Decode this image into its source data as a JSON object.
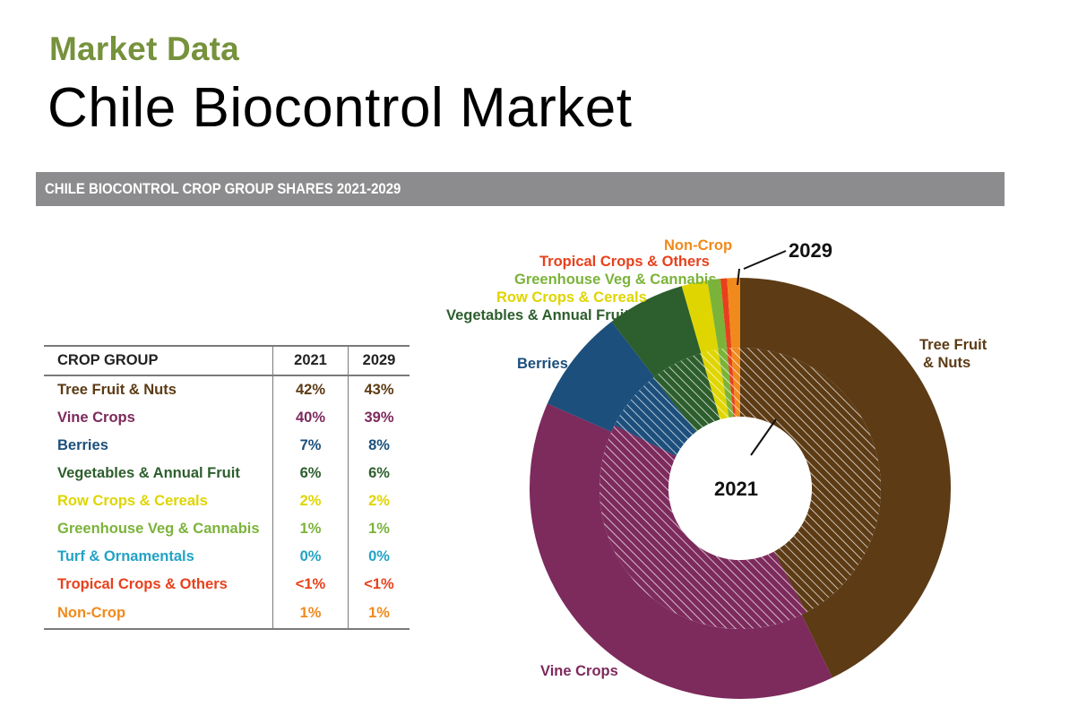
{
  "page": {
    "subtitle": "Market Data",
    "title": "Chile Biocontrol Market",
    "banner": "CHILE BIOCONTROL CROP GROUP SHARES 2021-2029"
  },
  "table": {
    "headers": [
      "CROP GROUP",
      "2021",
      "2029"
    ],
    "rows": [
      {
        "name": "Tree Fruit & Nuts",
        "y2021": "42%",
        "y2029": "43%",
        "color": "#5c3b15"
      },
      {
        "name": "Vine Crops",
        "y2021": "40%",
        "y2029": "39%",
        "color": "#7d2a5c"
      },
      {
        "name": "Berries",
        "y2021": "7%",
        "y2029": "8%",
        "color": "#1c4f7c"
      },
      {
        "name": "Vegetables & Annual Fruit",
        "y2021": "6%",
        "y2029": "6%",
        "color": "#2d5e2d"
      },
      {
        "name": "Row Crops & Cereals",
        "y2021": "2%",
        "y2029": "2%",
        "color": "#dfd500"
      },
      {
        "name": "Greenhouse Veg & Cannabis",
        "y2021": "1%",
        "y2029": "1%",
        "color": "#7bb33a"
      },
      {
        "name": "Turf & Ornamentals",
        "y2021": "0%",
        "y2029": "0%",
        "color": "#22a3c5"
      },
      {
        "name": "Tropical Crops & Others",
        "y2021": "<1%",
        "y2029": "<1%",
        "color": "#e8401c"
      },
      {
        "name": "Non-Crop",
        "y2021": "1%",
        "y2029": "1%",
        "color": "#f08a1c"
      }
    ]
  },
  "chart_data": {
    "type": "pie",
    "variant": "nested-donut",
    "title": "CHILE BIOCONTROL CROP GROUP SHARES 2021-2029",
    "inner_ring_label": "2021",
    "outer_ring_label": "2029",
    "categories": [
      "Tree Fruit & Nuts",
      "Vine Crops",
      "Berries",
      "Vegetables & Annual Fruit",
      "Row Crops & Cereals",
      "Greenhouse Veg & Cannabis",
      "Turf & Ornamentals",
      "Tropical Crops & Others",
      "Non-Crop"
    ],
    "slice_labels": [
      "Tree Fruit\n& Nuts",
      "Vine Crops",
      "Berries",
      "Vegetables & Annual Fruit",
      "Row Crops & Cereals",
      "Greenhouse Veg & Cannabis",
      "",
      "Tropical Crops & Others",
      "Non-Crop"
    ],
    "series": [
      {
        "name": "2021",
        "values": [
          42,
          40,
          7,
          6,
          2,
          1,
          0,
          0.5,
          1
        ]
      },
      {
        "name": "2029",
        "values": [
          43,
          39,
          8,
          6,
          2,
          1,
          0,
          0.5,
          1
        ]
      }
    ],
    "colors": [
      "#5c3b15",
      "#7d2a5c",
      "#1c4f7c",
      "#2d5e2d",
      "#dfd500",
      "#7bb33a",
      "#22a3c5",
      "#e8401c",
      "#f08a1c"
    ],
    "legend": "none"
  }
}
